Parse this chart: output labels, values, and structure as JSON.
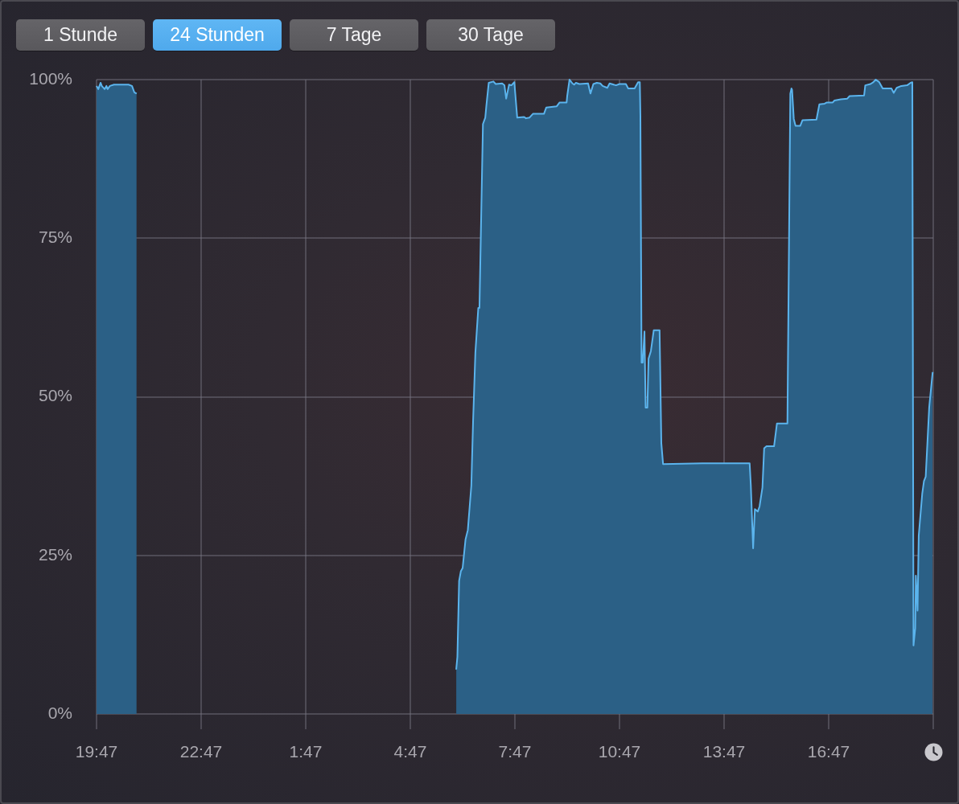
{
  "chart_data": {
    "type": "area",
    "x": [
      "--01-01T19:47",
      "--01-01T19:50",
      "--01-01T19:54",
      "--01-01T19:56",
      "--01-01T20:01",
      "--01-01T20:04",
      "--01-01T20:06",
      "--01-01T20:10",
      "--01-01T20:17",
      "--01-01T20:42",
      "--01-01T20:48",
      "--01-01T20:52",
      "--01-01T20:56",
      "--01-01T21:30",
      "--01-02T06:06",
      "--01-02T06:08",
      "--01-02T06:11",
      "--01-02T06:14",
      "--01-02T06:17",
      "--01-02T06:22",
      "--01-02T06:26",
      "--01-02T06:32",
      "--01-02T06:35",
      "--01-02T06:39",
      "--01-02T06:44",
      "--01-02T06:46",
      "--01-02T06:52",
      "--01-02T06:56",
      "--01-02T06:58",
      "--01-02T07:02",
      "--01-02T07:10",
      "--01-02T07:14",
      "--01-02T07:25",
      "--01-02T07:29",
      "--01-02T07:32",
      "--01-02T07:37",
      "--01-02T07:41",
      "--01-02T07:46",
      "--01-02T07:51",
      "--01-02T08:03",
      "--01-02T08:06",
      "--01-02T08:12",
      "--01-02T08:18",
      "--01-02T08:37",
      "--01-02T08:41",
      "--01-02T08:59",
      "--01-02T09:04",
      "--01-02T09:16",
      "--01-02T09:17",
      "--01-02T09:21",
      "--01-02T09:26",
      "--01-02T09:29",
      "--01-02T09:32",
      "--01-02T09:38",
      "--01-02T09:53",
      "--01-02T09:57",
      "--01-02T10:02",
      "--01-02T10:08",
      "--01-02T10:14",
      "--01-02T10:18",
      "--01-02T10:26",
      "--01-02T10:30",
      "--01-02T10:41",
      "--01-02T10:47",
      "--01-02T10:58",
      "--01-02T11:02",
      "--01-02T11:13",
      "--01-02T11:19",
      "--01-02T11:22",
      "--01-02T11:23",
      "--01-02T11:25",
      "--01-02T11:27",
      "--01-02T11:30",
      "--01-02T11:32",
      "--01-02T11:35",
      "--01-02T11:37",
      "--01-02T11:41",
      "--01-02T11:46",
      "--01-02T11:56",
      "--01-02T11:59",
      "--01-02T12:02",
      "--01-02T13:10",
      "--01-02T14:31",
      "--01-02T14:33",
      "--01-02T14:37",
      "--01-02T14:40",
      "--01-02T14:45",
      "--01-02T14:48",
      "--01-02T14:53",
      "--01-02T14:56",
      "--01-02T15:00",
      "--01-02T15:13",
      "--01-02T15:18",
      "--01-02T15:36",
      "--01-02T15:41",
      "--01-02T15:43",
      "--01-02T15:44",
      "--01-02T15:47",
      "--01-02T15:50",
      "--01-02T15:58",
      "--01-02T16:02",
      "--01-02T16:26",
      "--01-02T16:31",
      "--01-02T16:40",
      "--01-02T16:44",
      "--01-02T16:54",
      "--01-02T16:57",
      "--01-02T17:08",
      "--01-02T17:19",
      "--01-02T17:23",
      "--01-02T17:48",
      "--01-02T17:50",
      "--01-02T17:59",
      "--01-02T18:04",
      "--01-02T18:08",
      "--01-02T18:14",
      "--01-02T18:20",
      "--01-02T18:35",
      "--01-02T18:39",
      "--01-02T18:44",
      "--01-02T18:52",
      "--01-02T19:02",
      "--01-02T19:08",
      "--01-02T19:11",
      "--01-02T19:13",
      "--01-02T19:16",
      "--01-02T19:17",
      "--01-02T19:20",
      "--01-02T19:22",
      "--01-02T19:28",
      "--01-02T19:31",
      "--01-02T19:34",
      "--01-02T19:40",
      "--01-02T19:41",
      "--01-02T19:46"
    ],
    "values": [
      99,
      98.5,
      99.5,
      99,
      98.5,
      99,
      98.5,
      99,
      99.2,
      99.2,
      99,
      98,
      97.8,
      null,
      7,
      9,
      21,
      22.5,
      23,
      27.5,
      29,
      36,
      46,
      57,
      64,
      64,
      93,
      94,
      96,
      99.5,
      99.7,
      99.3,
      99.4,
      99.1,
      97,
      99.2,
      99.1,
      99.6,
      94,
      94.1,
      93.9,
      94,
      94.6,
      94.6,
      95.6,
      95.8,
      96.4,
      96.4,
      97.4,
      100,
      99.4,
      99.2,
      99.5,
      99.3,
      99.4,
      97.8,
      99.3,
      99.5,
      99.4,
      99,
      98.7,
      99.4,
      99.1,
      99.3,
      99.3,
      98.6,
      98.6,
      99.6,
      99.6,
      94.2,
      55.4,
      55.4,
      60.3,
      48.3,
      48.3,
      56,
      57.2,
      60.5,
      60.5,
      42.7,
      39.4,
      39.5,
      39.5,
      36.1,
      26.1,
      32.3,
      31.9,
      32.7,
      35.7,
      41.9,
      42.2,
      42.2,
      45.8,
      45.8,
      97.8,
      98.6,
      98.4,
      93.8,
      92.7,
      92.7,
      93.6,
      93.7,
      96.1,
      96.2,
      96.4,
      96.4,
      96.7,
      96.9,
      97,
      97.4,
      97.5,
      99.1,
      99.3,
      99.6,
      100,
      99.6,
      98.6,
      98.6,
      97.9,
      98.7,
      99,
      99.1,
      99.5,
      99.6,
      10.8,
      13.5,
      21.8,
      16.3,
      28.1,
      34.7,
      36.7,
      37.4,
      48.3,
      49.3,
      53.9
    ],
    "color": "#2b6086",
    "xlim": [
      "--01-01T19:47",
      "--01-02T19:47"
    ],
    "xticks": [
      {
        "value": "--01-01T19:47",
        "label": "19:47"
      },
      {
        "value": "--01-01T22:47",
        "label": "22:47"
      },
      {
        "value": "--01-02T01:47",
        "label": "1:47"
      },
      {
        "value": "--01-02T04:47",
        "label": "4:47"
      },
      {
        "value": "--01-02T07:47",
        "label": "7:47"
      },
      {
        "value": "--01-02T10:47",
        "label": "10:47"
      },
      {
        "value": "--01-02T13:47",
        "label": "13:47"
      },
      {
        "value": "--01-02T16:47",
        "label": "16:47"
      },
      {
        "value": "--01-02T19:47",
        "label": null
      }
    ],
    "ylim": [
      0,
      100
    ],
    "yticks": [
      {
        "value": 0,
        "label": "0%"
      },
      {
        "value": 25,
        "label": "25%"
      },
      {
        "value": 50,
        "label": "50%"
      },
      {
        "value": 75,
        "label": "75%"
      },
      {
        "value": 100,
        "label": "100%"
      }
    ],
    "grid": true,
    "marker": "none",
    "annotations": [
      "1 Stunde",
      "24 Stunden",
      "7 Tage",
      "30 Tage"
    ]
  }
}
